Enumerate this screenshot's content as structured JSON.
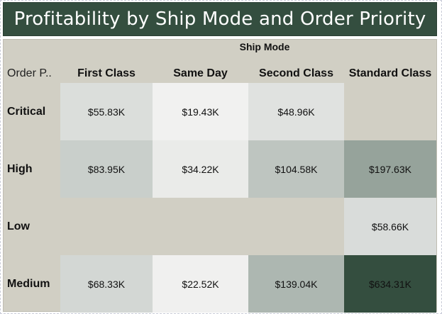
{
  "title": "Profitability by Ship Mode and Order Priority",
  "column_group_label": "Ship Mode",
  "row_header_label": "Order P..",
  "colors": {
    "title_bg": "#344e3f",
    "panel_bg": "#d1cfc4",
    "scale_low": "#f1f1f0",
    "scale_high": "#344e3f"
  },
  "chart_data": {
    "type": "heatmap",
    "title": "Profitability by Ship Mode and Order Priority",
    "x_label": "Ship Mode",
    "y_label": "Order P..",
    "columns": [
      "First Class",
      "Same Day",
      "Second Class",
      "Standard Class"
    ],
    "rows": [
      "Critical",
      "High",
      "Low",
      "Medium"
    ],
    "values": [
      [
        55.83,
        19.43,
        48.96,
        null
      ],
      [
        83.95,
        34.22,
        104.58,
        197.63
      ],
      [
        null,
        null,
        null,
        58.66
      ],
      [
        68.33,
        22.52,
        139.04,
        634.31
      ]
    ],
    "labels": [
      [
        "$55.83K",
        "$19.43K",
        "$48.96K",
        ""
      ],
      [
        "$83.95K",
        "$34.22K",
        "$104.58K",
        "$197.63K"
      ],
      [
        "",
        "",
        "",
        "$58.66K"
      ],
      [
        "$68.33K",
        "$22.52K",
        "$139.04K",
        "$634.31K"
      ]
    ],
    "value_unit": "K USD"
  }
}
